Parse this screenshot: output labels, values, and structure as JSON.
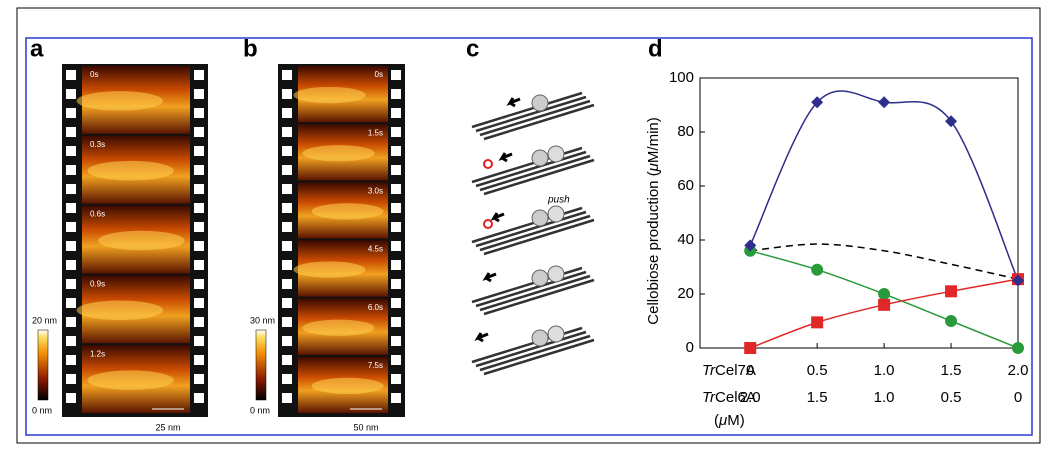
{
  "panels": {
    "a": {
      "label": "a",
      "frames": [
        "0s",
        "0.3s",
        "0.6s",
        "0.9s",
        "1.2s"
      ],
      "colorbar": [
        "20 nm",
        "0 nm"
      ],
      "scale": "25 nm"
    },
    "b": {
      "label": "b",
      "frames": [
        "0s",
        "1.5s",
        "3.0s",
        "4.5s",
        "6.0s",
        "7.5s"
      ],
      "colorbar": [
        "30 nm",
        "0 nm"
      ],
      "scale": "50 nm"
    },
    "c": {
      "label": "c",
      "annotation": "push"
    },
    "d": {
      "label": "d"
    }
  },
  "chart_data": {
    "type": "line",
    "y_label": [
      "Cellobiose production (",
      "μ",
      "M/min)"
    ],
    "x_rows": [
      {
        "prefix": "Tr",
        "name": "Cel7A"
      },
      {
        "prefix": "Tr",
        "name": "Cel6A"
      }
    ],
    "x_unit": [
      "(",
      "μ",
      "M)"
    ],
    "x": [
      0,
      0.5,
      1,
      1.5,
      2
    ],
    "xlim": [
      -0.375,
      2
    ],
    "xticks": [
      0,
      0.5,
      {
        "value": 1,
        "label": "1.0"
      },
      1.5,
      {
        "value": 2,
        "label": "2.0"
      }
    ],
    "xticks2": [
      "2.0",
      "1.5",
      "1.0",
      "0.5",
      "0"
    ],
    "ylim": [
      0,
      100
    ],
    "yticks": [
      0,
      20,
      40,
      60,
      80,
      100
    ],
    "series": [
      {
        "color": "#2e2e8c",
        "marker": "diamond",
        "values": [
          38,
          91,
          91,
          84,
          25
        ]
      },
      {
        "color": "#2a9a3a",
        "marker": "circle",
        "values": [
          36,
          29,
          20,
          10,
          0
        ]
      },
      {
        "color": "#e02828",
        "marker": "square",
        "values": [
          0,
          9.5,
          16,
          21,
          25.5
        ]
      },
      {
        "color": "#000000",
        "marker": "none",
        "dashed": true,
        "values": [
          36,
          38.5,
          36,
          31,
          25.5
        ]
      }
    ]
  }
}
